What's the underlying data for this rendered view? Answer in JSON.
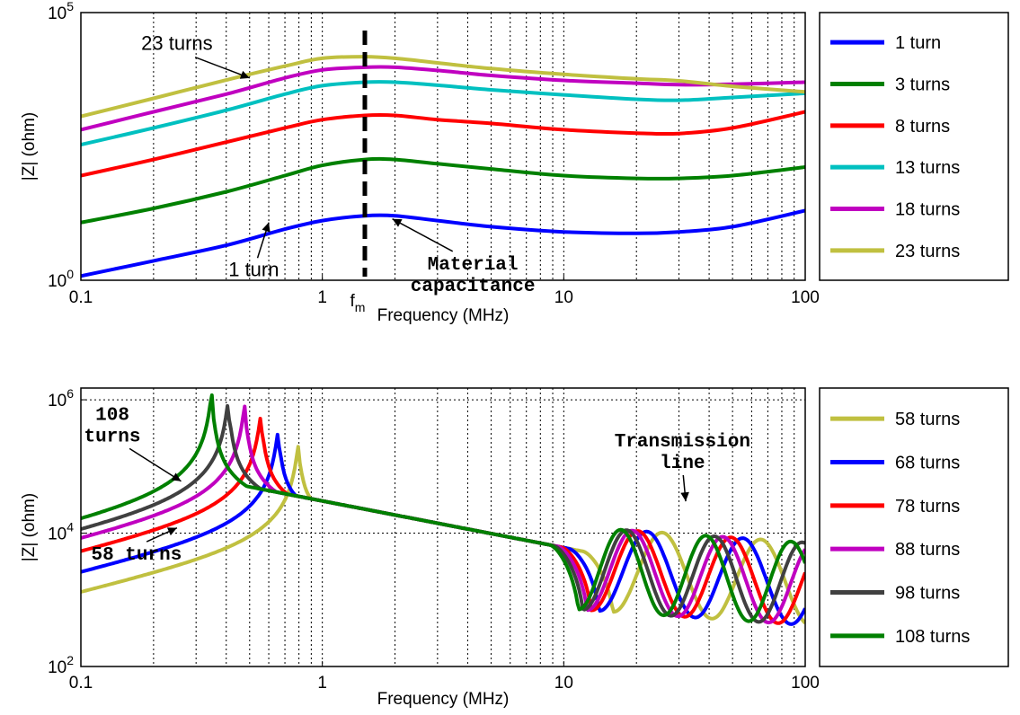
{
  "chart_data": [
    {
      "type": "line",
      "xscale": "log",
      "yscale": "log",
      "xlim": [
        0.1,
        100
      ],
      "ylim": [
        1,
        100000
      ],
      "xticks": [
        {
          "value": 0.1,
          "label": "0.1"
        },
        {
          "value": 1,
          "label": "1"
        },
        {
          "value": 10,
          "label": "10"
        },
        {
          "value": 100,
          "label": "100"
        }
      ],
      "yticks": [
        {
          "value": 1,
          "base": "10",
          "exp": "0"
        },
        {
          "value": 100000,
          "base": "10",
          "exp": "5"
        }
      ],
      "xlabel": "Frequency (MHz)",
      "ylabel": "|Z| (ohm)",
      "grid": "x-major-minor",
      "legend_position": "right-outside",
      "marker": {
        "x": 1.5,
        "label_base": "f",
        "label_sub": "m",
        "style": "dashed"
      },
      "annotations": [
        {
          "text": "23 turns",
          "x": 0.25,
          "y": 20000,
          "arrow_to": [
            0.5,
            6000
          ],
          "font": "sans"
        },
        {
          "text": "1 turn",
          "x": 0.52,
          "y": 1.2,
          "arrow_to": [
            0.6,
            12
          ],
          "font": "sans"
        },
        {
          "lines": [
            "Material",
            "capacitance"
          ],
          "x": 4.2,
          "y": 1.6,
          "arrow_to": [
            1.95,
            14
          ],
          "font": "mono"
        }
      ],
      "series": [
        {
          "name": "1 turn",
          "color": "#0000ff",
          "x": [
            0.1,
            0.2,
            0.4,
            0.7,
            1.0,
            1.5,
            2.0,
            3.0,
            5.0,
            10,
            20,
            30,
            50,
            100
          ],
          "y": [
            1.2,
            2.3,
            4.5,
            9,
            13,
            16,
            16,
            13,
            10,
            8,
            7.5,
            8,
            10,
            20
          ]
        },
        {
          "name": "3 turns",
          "color": "#008000",
          "x": [
            0.1,
            0.2,
            0.4,
            0.7,
            1.0,
            1.5,
            2.0,
            3.0,
            5.0,
            10,
            20,
            30,
            50,
            100
          ],
          "y": [
            12,
            22,
            45,
            90,
            140,
            180,
            180,
            150,
            120,
            90,
            80,
            80,
            90,
            130
          ]
        },
        {
          "name": "8 turns",
          "color": "#ff0000",
          "x": [
            0.1,
            0.2,
            0.4,
            0.7,
            1.0,
            1.5,
            2.0,
            3.0,
            5.0,
            10,
            20,
            30,
            50,
            100
          ],
          "y": [
            90,
            180,
            380,
            700,
            1000,
            1200,
            1200,
            1000,
            850,
            650,
            560,
            550,
            700,
            1400
          ]
        },
        {
          "name": "13 turns",
          "color": "#00c0c0",
          "x": [
            0.1,
            0.2,
            0.4,
            0.7,
            1.0,
            1.5,
            2.0,
            3.0,
            5.0,
            10,
            20,
            30,
            50,
            100
          ],
          "y": [
            340,
            700,
            1500,
            3000,
            4300,
            5000,
            5000,
            4400,
            3600,
            2900,
            2400,
            2300,
            2600,
            3100
          ]
        },
        {
          "name": "18 turns",
          "color": "#c000c0",
          "x": [
            0.1,
            0.2,
            0.4,
            0.7,
            1.0,
            1.5,
            2.0,
            3.0,
            5.0,
            10,
            20,
            30,
            50,
            100
          ],
          "y": [
            650,
            1400,
            3000,
            6000,
            8500,
            9500,
            9500,
            8300,
            6700,
            5400,
            4800,
            4500,
            4600,
            5000
          ]
        },
        {
          "name": "23 turns",
          "color": "#c0c040",
          "x": [
            0.1,
            0.2,
            0.4,
            0.7,
            1.0,
            1.5,
            2.0,
            3.0,
            5.0,
            10,
            20,
            30,
            50,
            100
          ],
          "y": [
            1150,
            2500,
            5500,
            10000,
            14000,
            15000,
            14000,
            11500,
            9000,
            7000,
            5800,
            5300,
            4200,
            3300
          ]
        }
      ]
    },
    {
      "type": "line",
      "xscale": "log",
      "yscale": "log",
      "xlim": [
        0.1,
        100
      ],
      "ylim": [
        100,
        1500000
      ],
      "xticks": [
        {
          "value": 0.1,
          "label": "0.1"
        },
        {
          "value": 1,
          "label": "1"
        },
        {
          "value": 10,
          "label": "10"
        },
        {
          "value": 100,
          "label": "100"
        }
      ],
      "yticks": [
        {
          "value": 100,
          "base": "10",
          "exp": "2"
        },
        {
          "value": 10000,
          "base": "10",
          "exp": "4"
        },
        {
          "value": 1000000,
          "base": "10",
          "exp": "6"
        }
      ],
      "xlabel": "Frequency (MHz)",
      "ylabel": "|Z| (ohm)",
      "grid": "x-major-minor-y-major",
      "legend_position": "right-outside",
      "annotations": [
        {
          "lines": [
            "108",
            "turns"
          ],
          "x": 0.135,
          "y": 500000,
          "arrow_to": [
            0.26,
            60000
          ],
          "font": "mono"
        },
        {
          "text": "58 turns",
          "x": 0.17,
          "y": 4000,
          "arrow_to": [
            0.25,
            12000
          ],
          "font": "mono"
        },
        {
          "lines": [
            "Transmission",
            "line"
          ],
          "x": 31,
          "y": 200000,
          "arrow_to": [
            32,
            30000
          ],
          "font": "mono"
        }
      ],
      "series": [
        {
          "name": "58 turns",
          "color": "#c0c040",
          "resonance_x": 0.8,
          "peak_y": 240000,
          "tl_start": 16,
          "tl_ratio": 1.6
        },
        {
          "name": "68 turns",
          "color": "#0000ff",
          "resonance_x": 0.66,
          "peak_y": 400000,
          "tl_start": 14,
          "tl_ratio": 1.58
        },
        {
          "name": "78 turns",
          "color": "#ff0000",
          "resonance_x": 0.56,
          "peak_y": 700000,
          "tl_start": 13,
          "tl_ratio": 1.56
        },
        {
          "name": "88 turns",
          "color": "#c000c0",
          "resonance_x": 0.48,
          "peak_y": 950000,
          "tl_start": 12.5,
          "tl_ratio": 1.54
        },
        {
          "name": "98 turns",
          "color": "#404040",
          "resonance_x": 0.41,
          "peak_y": 1100000,
          "tl_start": 12,
          "tl_ratio": 1.52
        },
        {
          "name": "108 turns",
          "color": "#008000",
          "resonance_x": 0.35,
          "peak_y": 1350000,
          "tl_start": 11.5,
          "tl_ratio": 1.5
        }
      ]
    }
  ]
}
